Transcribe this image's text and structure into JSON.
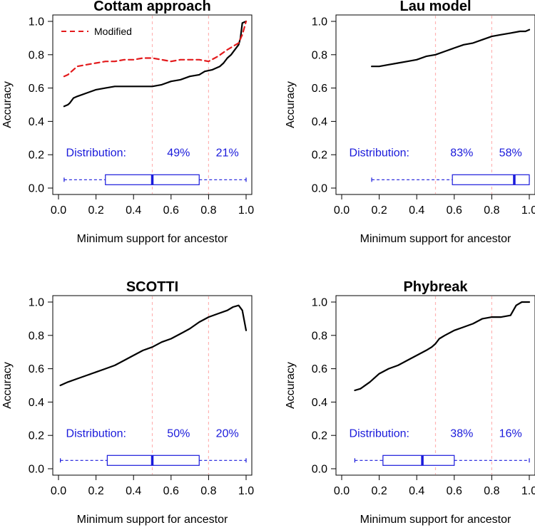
{
  "figure": {
    "panel_count": 4
  },
  "chart_data": [
    {
      "type": "line",
      "title": "Cottam approach",
      "xlabel": "Minimum support for ancestor",
      "ylabel": "Accuracy",
      "xlim": [
        0,
        1
      ],
      "ylim": [
        0,
        1
      ],
      "xticks": [
        "0.0",
        "0.2",
        "0.4",
        "0.6",
        "0.8",
        "1.0"
      ],
      "yticks": [
        "0.0",
        "0.2",
        "0.4",
        "0.6",
        "0.8",
        "1.0"
      ],
      "reference_lines_x": [
        0.5,
        0.8
      ],
      "distribution": {
        "label": "Distribution:",
        "pct_above_0_5": "49%",
        "pct_above_0_8": "21%"
      },
      "boxplot": {
        "y": 0.05,
        "min": 0.03,
        "q1": 0.25,
        "median": 0.5,
        "q3": 0.75,
        "max": 1.0
      },
      "legend": {
        "entries": [
          "Modified"
        ],
        "position": "top-left"
      },
      "series": [
        {
          "name": "Accuracy",
          "color": "#000000",
          "style": "solid",
          "x": [
            0.03,
            0.05,
            0.06,
            0.08,
            0.1,
            0.15,
            0.2,
            0.25,
            0.3,
            0.35,
            0.4,
            0.45,
            0.5,
            0.55,
            0.6,
            0.65,
            0.7,
            0.75,
            0.78,
            0.82,
            0.86,
            0.88,
            0.9,
            0.92,
            0.94,
            0.96,
            0.97,
            0.98,
            1.0
          ],
          "y": [
            0.49,
            0.5,
            0.51,
            0.54,
            0.55,
            0.57,
            0.59,
            0.6,
            0.61,
            0.61,
            0.61,
            0.61,
            0.61,
            0.62,
            0.64,
            0.65,
            0.67,
            0.68,
            0.7,
            0.71,
            0.73,
            0.75,
            0.78,
            0.8,
            0.83,
            0.86,
            0.9,
            0.99,
            1.0
          ]
        },
        {
          "name": "Modified",
          "color": "#e31a1c",
          "style": "dashed",
          "x": [
            0.03,
            0.05,
            0.07,
            0.1,
            0.15,
            0.2,
            0.25,
            0.3,
            0.35,
            0.4,
            0.45,
            0.5,
            0.55,
            0.6,
            0.65,
            0.7,
            0.75,
            0.8,
            0.85,
            0.9,
            0.93,
            0.96,
            0.98,
            1.0
          ],
          "y": [
            0.67,
            0.68,
            0.7,
            0.73,
            0.74,
            0.75,
            0.76,
            0.76,
            0.77,
            0.77,
            0.78,
            0.78,
            0.77,
            0.76,
            0.77,
            0.77,
            0.77,
            0.76,
            0.79,
            0.83,
            0.85,
            0.87,
            0.92,
            1.0
          ]
        }
      ]
    },
    {
      "type": "line",
      "title": "Lau model",
      "xlabel": "Minimum support for ancestor",
      "ylabel": "Accuracy",
      "xlim": [
        0,
        1
      ],
      "ylim": [
        0,
        1
      ],
      "xticks": [
        "0.0",
        "0.2",
        "0.4",
        "0.6",
        "0.8",
        "1.0"
      ],
      "yticks": [
        "0.0",
        "0.2",
        "0.4",
        "0.6",
        "0.8",
        "1.0"
      ],
      "reference_lines_x": [
        0.5,
        0.8
      ],
      "distribution": {
        "label": "Distribution:",
        "pct_above_0_5": "83%",
        "pct_above_0_8": "58%"
      },
      "boxplot": {
        "y": 0.05,
        "min": 0.16,
        "q1": 0.59,
        "median": 0.92,
        "q3": 1.0,
        "max": 1.0
      },
      "series": [
        {
          "name": "Accuracy",
          "color": "#000000",
          "style": "solid",
          "x": [
            0.16,
            0.2,
            0.25,
            0.3,
            0.35,
            0.4,
            0.45,
            0.5,
            0.55,
            0.6,
            0.65,
            0.7,
            0.75,
            0.8,
            0.85,
            0.9,
            0.95,
            0.98,
            1.0
          ],
          "y": [
            0.73,
            0.73,
            0.74,
            0.75,
            0.76,
            0.77,
            0.79,
            0.8,
            0.82,
            0.84,
            0.86,
            0.87,
            0.89,
            0.91,
            0.92,
            0.93,
            0.94,
            0.94,
            0.95
          ]
        }
      ]
    },
    {
      "type": "line",
      "title": "SCOTTI",
      "xlabel": "Minimum support for ancestor",
      "ylabel": "Accuracy",
      "xlim": [
        0,
        1
      ],
      "ylim": [
        0,
        1
      ],
      "xticks": [
        "0.0",
        "0.2",
        "0.4",
        "0.6",
        "0.8",
        "1.0"
      ],
      "yticks": [
        "0.0",
        "0.2",
        "0.4",
        "0.6",
        "0.8",
        "1.0"
      ],
      "reference_lines_x": [
        0.5,
        0.8
      ],
      "distribution": {
        "label": "Distribution:",
        "pct_above_0_5": "50%",
        "pct_above_0_8": "20%"
      },
      "boxplot": {
        "y": 0.05,
        "min": 0.01,
        "q1": 0.26,
        "median": 0.5,
        "q3": 0.75,
        "max": 1.0
      },
      "series": [
        {
          "name": "Accuracy",
          "color": "#000000",
          "style": "solid",
          "x": [
            0.01,
            0.05,
            0.1,
            0.15,
            0.2,
            0.25,
            0.3,
            0.35,
            0.4,
            0.45,
            0.5,
            0.55,
            0.6,
            0.65,
            0.7,
            0.75,
            0.8,
            0.85,
            0.9,
            0.93,
            0.96,
            0.98,
            1.0
          ],
          "y": [
            0.5,
            0.52,
            0.54,
            0.56,
            0.58,
            0.6,
            0.62,
            0.65,
            0.68,
            0.71,
            0.73,
            0.76,
            0.78,
            0.81,
            0.84,
            0.88,
            0.91,
            0.93,
            0.95,
            0.97,
            0.98,
            0.95,
            0.83
          ]
        }
      ]
    },
    {
      "type": "line",
      "title": "Phybreak",
      "xlabel": "Minimum support for ancestor",
      "ylabel": "Accuracy",
      "xlim": [
        0,
        1
      ],
      "ylim": [
        0,
        1
      ],
      "xticks": [
        "0.0",
        "0.2",
        "0.4",
        "0.6",
        "0.8",
        "1.0"
      ],
      "yticks": [
        "0.0",
        "0.2",
        "0.4",
        "0.6",
        "0.8",
        "1.0"
      ],
      "reference_lines_x": [
        0.5,
        0.8
      ],
      "distribution": {
        "label": "Distribution:",
        "pct_above_0_5": "38%",
        "pct_above_0_8": "16%"
      },
      "boxplot": {
        "y": 0.05,
        "min": 0.07,
        "q1": 0.22,
        "median": 0.43,
        "q3": 0.6,
        "max": 1.0
      },
      "series": [
        {
          "name": "Accuracy",
          "color": "#000000",
          "style": "solid",
          "x": [
            0.07,
            0.1,
            0.15,
            0.2,
            0.25,
            0.3,
            0.35,
            0.4,
            0.45,
            0.48,
            0.5,
            0.52,
            0.55,
            0.6,
            0.65,
            0.7,
            0.75,
            0.8,
            0.85,
            0.9,
            0.93,
            0.96,
            1.0
          ],
          "y": [
            0.47,
            0.48,
            0.52,
            0.57,
            0.6,
            0.62,
            0.65,
            0.68,
            0.71,
            0.73,
            0.75,
            0.78,
            0.8,
            0.83,
            0.85,
            0.87,
            0.9,
            0.91,
            0.91,
            0.92,
            0.98,
            1.0,
            1.0
          ]
        }
      ]
    }
  ]
}
